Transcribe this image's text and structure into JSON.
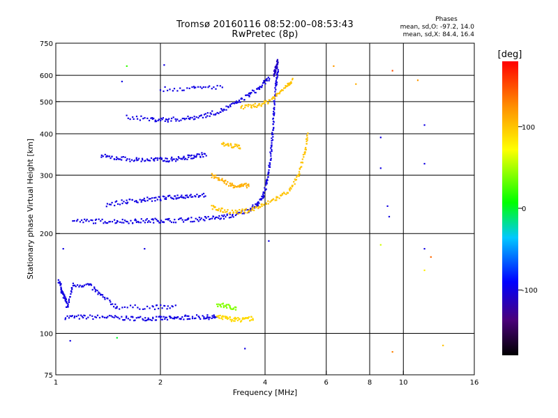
{
  "chart_data": {
    "type": "scatter",
    "title": "Tromsø 20160116 08:52:00–08:53:43",
    "subtitle": "RwPretec (8p)",
    "stats": {
      "header": "Phases",
      "line_o": "mean, sd,O:  -97.2, 14.0",
      "line_x": "mean, sd,X:  84.4, 16.4"
    },
    "xlabel": "Frequency [MHz]",
    "ylabel": "Stationary phase Virtual Height [km]",
    "x_scale": "log",
    "y_scale": "log",
    "xlim": [
      1,
      16
    ],
    "ylim": [
      75,
      750
    ],
    "x_ticks": [
      1,
      2,
      4,
      6,
      8,
      10,
      16
    ],
    "x_tick_labels": [
      "1",
      "2",
      "4",
      "6",
      "8",
      "10",
      "16"
    ],
    "x_gridlines": [
      2,
      4,
      6,
      8,
      10
    ],
    "y_ticks": [
      75,
      100,
      200,
      300,
      400,
      500,
      600,
      750
    ],
    "y_tick_labels": [
      "75",
      "100",
      "200",
      "300",
      "400",
      "500",
      "600",
      "750"
    ],
    "y_gridlines": [
      100,
      200,
      300,
      400,
      500,
      600
    ],
    "grid": true,
    "colorbar": {
      "label": "[deg]",
      "range": [
        -180,
        180
      ],
      "ticks": [
        100,
        0,
        -100
      ],
      "tick_labels": [
        "100",
        "0",
        "-100"
      ],
      "colormap": "rainbow"
    },
    "series": [
      {
        "phase": -100,
        "points": [
          [
            1.06,
            112
          ],
          [
            1.2,
            112
          ],
          [
            1.4,
            112
          ],
          [
            1.6,
            111
          ],
          [
            1.8,
            111
          ],
          [
            2.0,
            111
          ],
          [
            2.2,
            111
          ],
          [
            2.4,
            112
          ],
          [
            2.7,
            112
          ],
          [
            2.9,
            112
          ]
        ]
      },
      {
        "phase": 90,
        "points": [
          [
            2.9,
            112
          ],
          [
            3.1,
            111
          ],
          [
            3.3,
            110
          ],
          [
            3.5,
            110
          ],
          [
            3.7,
            111
          ]
        ]
      },
      {
        "phase": -100,
        "points": [
          [
            1.02,
            145
          ],
          [
            1.04,
            135
          ],
          [
            1.06,
            128
          ],
          [
            1.08,
            120
          ],
          [
            1.12,
            140
          ],
          [
            1.25,
            140
          ],
          [
            1.35,
            130
          ],
          [
            1.5,
            120
          ],
          [
            1.9,
            120
          ],
          [
            2.2,
            120
          ]
        ]
      },
      {
        "phase": 40,
        "points": [
          [
            2.9,
            122
          ],
          [
            3.1,
            121
          ],
          [
            3.3,
            119
          ]
        ]
      },
      {
        "phase": -100,
        "points": [
          [
            1.12,
            218
          ],
          [
            1.3,
            218
          ],
          [
            1.5,
            218
          ],
          [
            1.7,
            218
          ],
          [
            1.9,
            219
          ],
          [
            2.1,
            219
          ],
          [
            2.4,
            220
          ],
          [
            2.7,
            222
          ],
          [
            3.0,
            224
          ],
          [
            3.3,
            228
          ],
          [
            3.6,
            236
          ],
          [
            3.8,
            245
          ],
          [
            3.95,
            260
          ],
          [
            4.05,
            285
          ],
          [
            4.12,
            320
          ],
          [
            4.18,
            370
          ],
          [
            4.22,
            430
          ],
          [
            4.26,
            500
          ],
          [
            4.3,
            560
          ],
          [
            4.35,
            630
          ]
        ]
      },
      {
        "phase": -100,
        "points": [
          [
            1.4,
            245
          ],
          [
            1.6,
            250
          ],
          [
            1.8,
            253
          ],
          [
            2.0,
            255
          ],
          [
            2.2,
            258
          ],
          [
            2.4,
            260
          ],
          [
            2.7,
            262
          ]
        ]
      },
      {
        "phase": 100,
        "points": [
          [
            2.8,
            240
          ],
          [
            3.0,
            235
          ],
          [
            3.3,
            232
          ],
          [
            3.6,
            235
          ],
          [
            3.9,
            242
          ],
          [
            4.3,
            255
          ],
          [
            4.7,
            270
          ],
          [
            5.0,
            300
          ],
          [
            5.2,
            350
          ],
          [
            5.3,
            400
          ]
        ]
      },
      {
        "phase": 110,
        "points": [
          [
            2.8,
            300
          ],
          [
            3.0,
            290
          ],
          [
            3.2,
            280
          ],
          [
            3.4,
            278
          ],
          [
            3.6,
            280
          ]
        ]
      },
      {
        "phase": -100,
        "points": [
          [
            1.35,
            342
          ],
          [
            1.5,
            338
          ],
          [
            1.7,
            334
          ],
          [
            1.9,
            334
          ],
          [
            2.1,
            334
          ],
          [
            2.3,
            337
          ],
          [
            2.5,
            342
          ],
          [
            2.7,
            347
          ]
        ]
      },
      {
        "phase": 100,
        "points": [
          [
            3.0,
            372
          ],
          [
            3.2,
            368
          ],
          [
            3.4,
            365
          ]
        ]
      },
      {
        "phase": -100,
        "points": [
          [
            1.6,
            450
          ],
          [
            1.9,
            442
          ],
          [
            2.1,
            441
          ],
          [
            2.4,
            445
          ],
          [
            2.7,
            455
          ],
          [
            3.0,
            470
          ],
          [
            3.3,
            495
          ],
          [
            3.6,
            525
          ],
          [
            3.9,
            555
          ],
          [
            4.1,
            590
          ]
        ]
      },
      {
        "phase": 100,
        "points": [
          [
            3.4,
            480
          ],
          [
            3.7,
            485
          ],
          [
            4.0,
            495
          ],
          [
            4.3,
            520
          ],
          [
            4.6,
            560
          ],
          [
            4.8,
            580
          ]
        ]
      },
      {
        "phase": -100,
        "points": [
          [
            2.0,
            545
          ],
          [
            2.5,
            548
          ],
          [
            3.0,
            555
          ]
        ]
      },
      {
        "phase": -110,
        "points": [
          [
            4.25,
            600
          ],
          [
            4.3,
            630
          ],
          [
            4.35,
            660
          ]
        ]
      }
    ],
    "scattered_points": [
      {
        "x": 8.6,
        "y": 390,
        "phase": -100
      },
      {
        "x": 8.6,
        "y": 315,
        "phase": -100
      },
      {
        "x": 8.6,
        "y": 185,
        "phase": 60
      },
      {
        "x": 9.0,
        "y": 242,
        "phase": -100
      },
      {
        "x": 9.1,
        "y": 225,
        "phase": -100
      },
      {
        "x": 9.3,
        "y": 620,
        "phase": 150
      },
      {
        "x": 9.3,
        "y": 88,
        "phase": 130
      },
      {
        "x": 11.5,
        "y": 425,
        "phase": -100
      },
      {
        "x": 11.5,
        "y": 325,
        "phase": -100
      },
      {
        "x": 11.5,
        "y": 180,
        "phase": -100
      },
      {
        "x": 12.0,
        "y": 170,
        "phase": 140
      },
      {
        "x": 11.5,
        "y": 155,
        "phase": 80
      },
      {
        "x": 13.0,
        "y": 92,
        "phase": 100
      },
      {
        "x": 6.3,
        "y": 640,
        "phase": 120
      },
      {
        "x": 7.3,
        "y": 565,
        "phase": 110
      },
      {
        "x": 11.0,
        "y": 580,
        "phase": 120
      },
      {
        "x": 1.6,
        "y": 640,
        "phase": 20
      },
      {
        "x": 2.05,
        "y": 645,
        "phase": -100
      },
      {
        "x": 1.55,
        "y": 575,
        "phase": -100
      },
      {
        "x": 1.8,
        "y": 180,
        "phase": -100
      },
      {
        "x": 1.05,
        "y": 180,
        "phase": -100
      },
      {
        "x": 4.1,
        "y": 190,
        "phase": -100
      },
      {
        "x": 3.5,
        "y": 90,
        "phase": -100
      },
      {
        "x": 1.1,
        "y": 95,
        "phase": -100
      },
      {
        "x": 1.5,
        "y": 97,
        "phase": 0
      }
    ]
  }
}
